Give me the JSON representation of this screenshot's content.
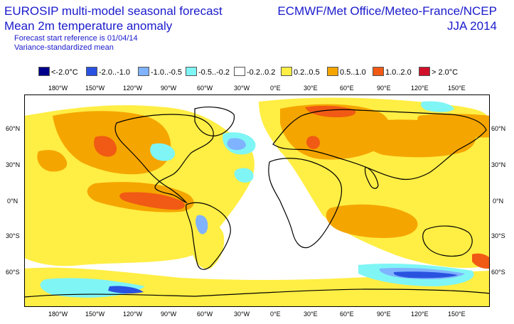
{
  "header": {
    "title_line1": "EUROSIP multi-model seasonal forecast",
    "title_line2": "Mean 2m temperature anomaly",
    "subtitle1": "Forecast start reference is 01/04/14",
    "subtitle2": "Variance-standardized mean",
    "source": "ECMWF/Met Office/Meteo-France/NCEP",
    "period": "JJA 2014"
  },
  "legend": [
    {
      "label": "<-2.0°C",
      "color": "#00008b"
    },
    {
      "label": "-2.0..-1.0",
      "color": "#2a52e0"
    },
    {
      "label": "-1.0..-0.5",
      "color": "#7fb2ff"
    },
    {
      "label": "-0.5..-0.2",
      "color": "#7ff5f5"
    },
    {
      "label": "-0.2..0.2",
      "color": "#ffffff"
    },
    {
      "label": "0.2..0.5",
      "color": "#ffee44"
    },
    {
      "label": "0.5..1.0",
      "color": "#f5a500"
    },
    {
      "label": "1.0..2.0",
      "color": "#f05a14"
    },
    {
      "label": "> 2.0°C",
      "color": "#d0102a"
    }
  ],
  "axes": {
    "lon_labels": [
      "180°W",
      "150°W",
      "120°W",
      "90°W",
      "60°W",
      "30°W",
      "0°E",
      "30°E",
      "60°E",
      "90°E",
      "120°E",
      "150°E"
    ],
    "lat_labels": [
      "60°N",
      "30°N",
      "0°N",
      "30°S",
      "60°S"
    ]
  }
}
